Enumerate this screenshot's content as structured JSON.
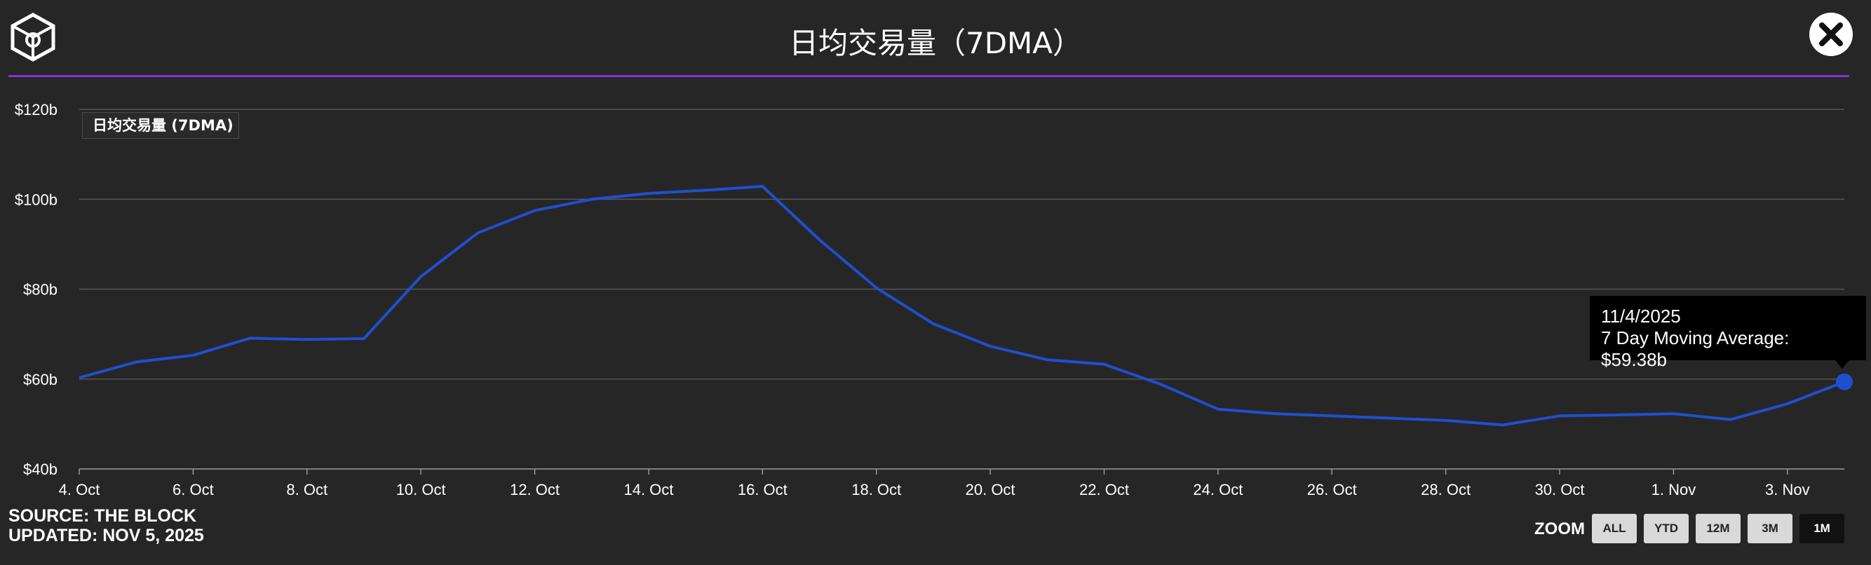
{
  "header": {
    "title": "日均交易量（7DMA）",
    "close_icon": "close-icon",
    "logo_icon": "the-block-cube-logo-icon"
  },
  "chart_data": {
    "type": "line",
    "title": "日均交易量（7DMA）",
    "xlabel": "",
    "ylabel": "",
    "ylim": [
      40,
      120
    ],
    "y_ticks": [
      "$40b",
      "$60b",
      "$80b",
      "$100b",
      "$120b"
    ],
    "x_ticks": [
      "4. Oct",
      "6. Oct",
      "8. Oct",
      "10. Oct",
      "12. Oct",
      "14. Oct",
      "16. Oct",
      "18. Oct",
      "20. Oct",
      "22. Oct",
      "24. Oct",
      "26. Oct",
      "28. Oct",
      "30. Oct",
      "1. Nov",
      "3. Nov"
    ],
    "legend": "日均交易量 (7DMA)",
    "series": [
      {
        "name": "7 Day Moving Average",
        "color": "#1f4fd1",
        "x": [
          "10/4",
          "10/5",
          "10/6",
          "10/7",
          "10/8",
          "10/9",
          "10/10",
          "10/11",
          "10/12",
          "10/13",
          "10/14",
          "10/15",
          "10/16",
          "10/17",
          "10/18",
          "10/19",
          "10/20",
          "10/21",
          "10/22",
          "10/23",
          "10/24",
          "10/25",
          "10/26",
          "10/27",
          "10/28",
          "10/29",
          "10/30",
          "10/31",
          "11/1",
          "11/2",
          "11/3",
          "11/4"
        ],
        "values": [
          60.3,
          63.8,
          65.3,
          69.1,
          68.8,
          69.0,
          82.8,
          92.5,
          97.5,
          100.0,
          101.3,
          102.0,
          102.9,
          91.0,
          80.3,
          72.3,
          67.3,
          64.3,
          63.3,
          58.8,
          53.3,
          52.3,
          51.8,
          51.3,
          50.8,
          49.8,
          51.8,
          52.0,
          52.3,
          51.0,
          54.5,
          59.38
        ]
      }
    ],
    "tooltip": {
      "date": "11/4/2025",
      "text": "7 Day Moving Average: $59.38b"
    }
  },
  "footer": {
    "source": "SOURCE: THE BLOCK",
    "updated": "UPDATED: NOV 5, 2025",
    "zoom_label": "ZOOM",
    "zoom_buttons": [
      "ALL",
      "YTD",
      "12M",
      "3M",
      "1M"
    ],
    "zoom_selected": "1M"
  }
}
